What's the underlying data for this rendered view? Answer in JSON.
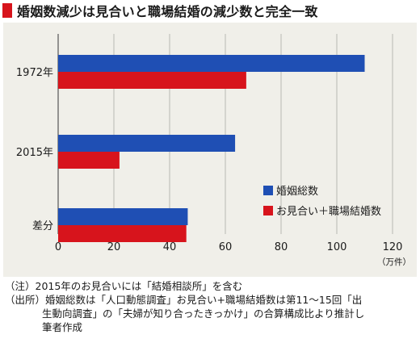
{
  "title": "婚姻数減少は見合いと職場結婚の減少数と完全一致",
  "notes": {
    "note": "（注）2015年のお見合いには「結婚相談所」を含む",
    "source_line1": "（出所）婚姻総数は「人口動態調査」お見合い+職場結婚数は第11〜15回「出",
    "source_line2": "生動向調査」の「夫婦が知り合ったきっかけ」の合算構成比より推計し",
    "source_line3": "筆者作成"
  },
  "chart_data": {
    "type": "bar",
    "orientation": "horizontal",
    "categories": [
      "1972年",
      "2015年",
      "差分"
    ],
    "series": [
      {
        "name": "婚姻総数",
        "color": "#1f4fb4",
        "values": [
          110,
          63.5,
          46.5
        ]
      },
      {
        "name": "お見合い＋職場結婚数",
        "color": "#d7141c",
        "values": [
          67.5,
          22,
          46
        ]
      }
    ],
    "xlim": [
      0,
      120
    ],
    "xticks": [
      0,
      20,
      40,
      60,
      80,
      100,
      120
    ],
    "xunit": "（万件）",
    "grid": true,
    "legend_position": "right"
  }
}
